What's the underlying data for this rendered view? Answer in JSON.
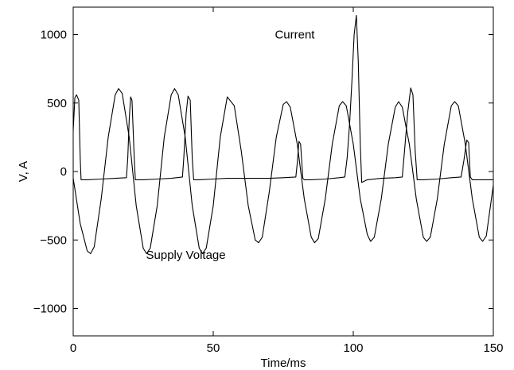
{
  "chart_data": {
    "type": "line",
    "title": "",
    "xlabel": "Time/ms",
    "ylabel": "V, A",
    "xlim": [
      0,
      150
    ],
    "ylim": [
      -1200,
      1200
    ],
    "xticks": [
      0,
      50,
      100,
      150
    ],
    "xtick_labels": [
      "0",
      "50",
      "100",
      "150"
    ],
    "yticks": [
      -1000,
      -500,
      0,
      500,
      1000
    ],
    "ytick_labels": [
      "−1000",
      "−500",
      "0",
      "500",
      "1000"
    ],
    "grid": false,
    "legend": "none",
    "annotations": [
      {
        "text": "Current",
        "x": 72,
        "y": 1000
      },
      {
        "text": "Supply Voltage",
        "x": 26,
        "y": -610
      }
    ],
    "series": [
      {
        "values_note": "",
        "x": [
          0,
          2.5,
          5,
          6.2,
          7.5,
          10,
          12.5,
          15,
          16.2,
          17.5,
          20,
          22.5,
          25,
          26.2,
          27.5,
          30,
          32.5,
          35,
          36.2,
          37.5,
          40,
          42.5,
          45,
          46.2,
          47.5,
          50,
          52.5,
          55,
          57.5,
          60,
          62.5,
          65,
          66.2,
          67.5,
          70,
          72.5,
          75,
          76.2,
          77.5,
          80,
          82.5,
          85,
          86.2,
          87.5,
          90,
          92.5,
          95,
          96.2,
          97.5,
          100,
          102.5,
          105,
          106.2,
          107.5,
          110,
          112.5,
          115,
          116.2,
          117.5,
          120,
          122.5,
          125,
          126.2,
          127.5,
          130,
          132.5,
          135,
          136.2,
          137.5,
          140,
          142.5,
          145,
          146.2,
          147.5,
          150
        ],
        "y": [
          -50,
          -380,
          -580,
          -600,
          -550,
          -200,
          250,
          560,
          605,
          570,
          250,
          -250,
          -560,
          -600,
          -560,
          -250,
          250,
          560,
          605,
          560,
          250,
          -250,
          -560,
          -600,
          -560,
          -250,
          250,
          545,
          480,
          150,
          -250,
          -500,
          -520,
          -480,
          -150,
          250,
          490,
          510,
          470,
          200,
          -200,
          -480,
          -520,
          -490,
          -200,
          200,
          480,
          510,
          480,
          200,
          -200,
          -460,
          -510,
          -480,
          -200,
          200,
          470,
          510,
          470,
          200,
          -200,
          -480,
          -510,
          -480,
          -200,
          200,
          480,
          510,
          480,
          200,
          -200,
          -480,
          -510,
          -470,
          -100
        ]
      },
      {
        "values_note": "",
        "x": [
          0,
          0.6,
          1.2,
          2,
          2.5,
          2.8,
          5,
          10,
          15,
          19,
          19.5,
          20,
          20.5,
          21,
          21.8,
          22.2,
          22.6,
          25,
          30,
          35,
          39,
          39.5,
          40.3,
          41,
          41.8,
          42.5,
          43,
          45,
          50,
          55,
          60,
          65,
          70,
          75,
          79.5,
          80,
          80.6,
          81.2,
          82,
          82.5,
          85,
          90,
          95,
          97,
          97.8,
          98.7,
          99.5,
          100.3,
          101.1,
          101.8,
          102.5,
          103,
          105,
          110,
          115,
          117.5,
          118.3,
          119.5,
          120.5,
          121.3,
          122.1,
          122.8,
          125,
          130,
          135,
          138.5,
          139.5,
          140.5,
          141.2,
          141.8,
          142.5,
          143,
          145,
          150
        ],
        "y": [
          300,
          540,
          560,
          520,
          100,
          -60,
          -60,
          -55,
          -50,
          -45,
          100,
          380,
          545,
          520,
          100,
          -60,
          -60,
          -60,
          -55,
          -50,
          -40,
          100,
          420,
          550,
          520,
          100,
          -60,
          -60,
          -55,
          -50,
          -50,
          -50,
          -50,
          -45,
          -40,
          60,
          220,
          200,
          -50,
          -60,
          -60,
          -55,
          -45,
          -40,
          100,
          350,
          650,
          1000,
          1140,
          800,
          200,
          -80,
          -60,
          -50,
          -45,
          -40,
          150,
          440,
          610,
          560,
          150,
          -60,
          -60,
          -55,
          -45,
          -40,
          80,
          230,
          210,
          -40,
          -60,
          -60,
          -60,
          -60
        ]
      }
    ]
  }
}
